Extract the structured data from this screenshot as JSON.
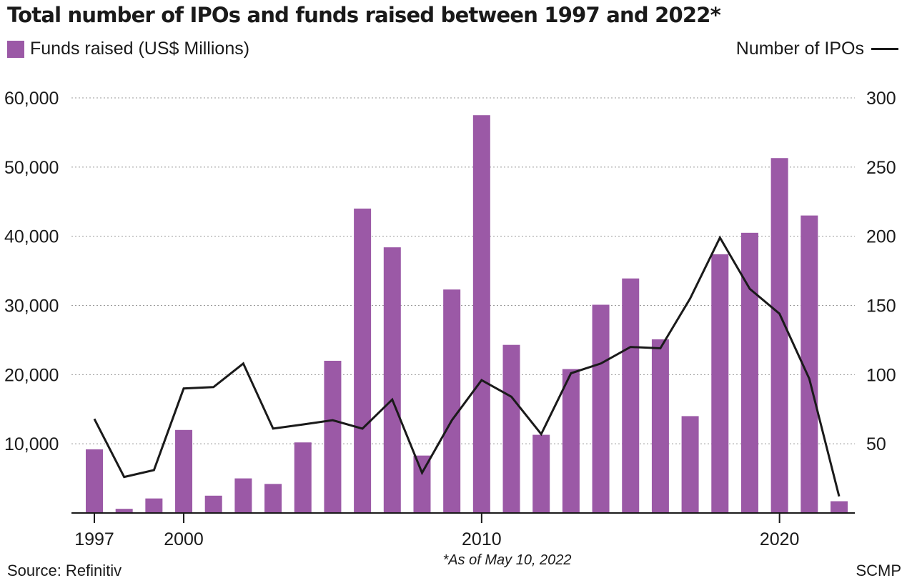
{
  "title": "Total number of IPOs and funds raised between 1997 and 2022*",
  "legend": {
    "bars_label": "Funds raised (US$ Millions)",
    "line_label": "Number of IPOs"
  },
  "footnote": "*As of May 10, 2022",
  "source": "Source: Refinitiv",
  "credit": "SCMP",
  "colors": {
    "bar": "#9b59a6",
    "line": "#1a1a1a",
    "grid": "#9a9a9a"
  },
  "chart_data": {
    "type": "bar",
    "title": "Total number of IPOs and funds raised between 1997 and 2022*",
    "x": [
      1997,
      1998,
      1999,
      2000,
      2001,
      2002,
      2003,
      2004,
      2005,
      2006,
      2007,
      2008,
      2009,
      2010,
      2011,
      2012,
      2013,
      2014,
      2015,
      2016,
      2017,
      2018,
      2019,
      2020,
      2021,
      2022
    ],
    "x_tick_labels": [
      "1997",
      "2000",
      "2010",
      "2020"
    ],
    "series": [
      {
        "name": "Funds raised (US$ Millions)",
        "type": "bar",
        "axis": "left",
        "values": [
          9200,
          600,
          2100,
          12000,
          2500,
          5000,
          4200,
          10200,
          22000,
          44000,
          38400,
          8300,
          32300,
          57500,
          24300,
          11300,
          20800,
          30100,
          33900,
          25100,
          14000,
          37400,
          40500,
          51300,
          43000,
          1700
        ]
      },
      {
        "name": "Number of IPOs",
        "type": "line",
        "axis": "right",
        "values": [
          68,
          26,
          31,
          90,
          91,
          108,
          61,
          64,
          67,
          61,
          82,
          29,
          67,
          96,
          84,
          57,
          101,
          108,
          120,
          119,
          155,
          199,
          162,
          144,
          97,
          12
        ]
      }
    ],
    "y_left": {
      "ylim": [
        0,
        60000
      ],
      "ticks": [
        "10,000",
        "20,000",
        "30,000",
        "40,000",
        "50,000",
        "60,000"
      ],
      "tick_values": [
        10000,
        20000,
        30000,
        40000,
        50000,
        60000
      ]
    },
    "y_right": {
      "ylim": [
        0,
        300
      ],
      "ticks": [
        "50",
        "100",
        "150",
        "200",
        "250",
        "300"
      ],
      "tick_values": [
        50,
        100,
        150,
        200,
        250,
        300
      ]
    },
    "grid": true,
    "legend_placement": "top"
  }
}
